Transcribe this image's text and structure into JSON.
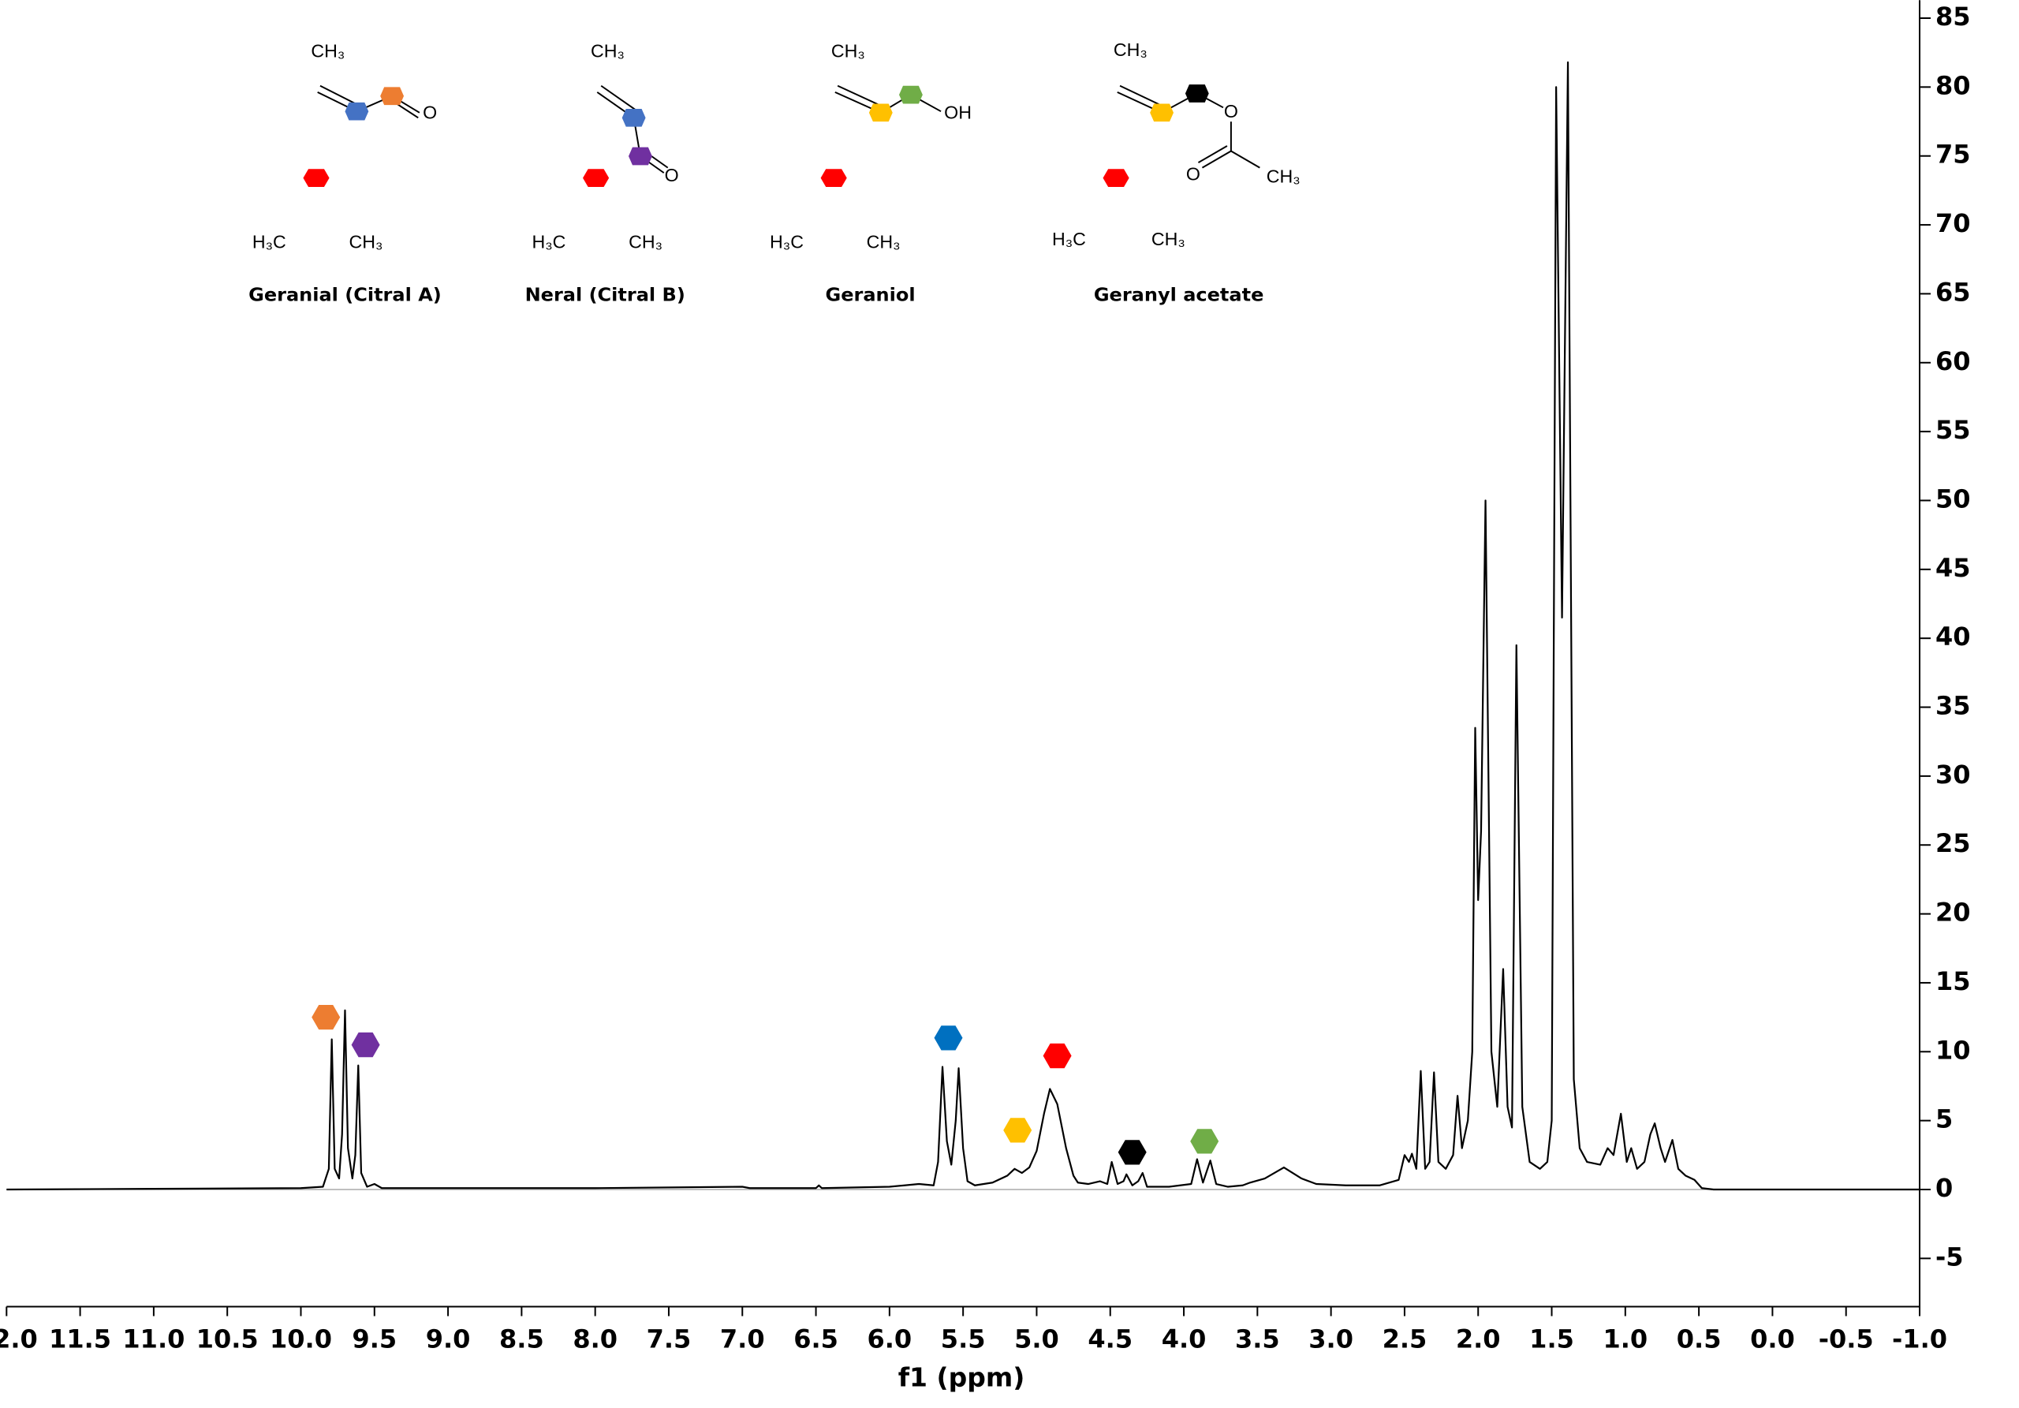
{
  "chart_data": {
    "type": "line",
    "xlabel": "f1 (ppm)",
    "xlim": [
      12.0,
      -1.0
    ],
    "ylim": [
      -8.5,
      86.3
    ],
    "xticks": [
      {
        "value": 12,
        "label": "12.0"
      },
      11.5,
      {
        "value": 11,
        "label": "11.0"
      },
      10.5,
      {
        "value": 10,
        "label": "10.0"
      },
      9.5,
      {
        "value": 9,
        "label": "9.0"
      },
      8.5,
      {
        "value": 8,
        "label": "8.0"
      },
      7.5,
      {
        "value": 7,
        "label": "7.0"
      },
      6.5,
      {
        "value": 6,
        "label": "6.0"
      },
      5.5,
      {
        "value": 5,
        "label": "5.0"
      },
      4.5,
      {
        "value": 4,
        "label": "4.0"
      },
      3.5,
      {
        "value": 3,
        "label": "3.0"
      },
      2.5,
      {
        "value": 2,
        "label": "2.0"
      },
      1.5,
      {
        "value": 1,
        "label": "1.0"
      },
      0.5,
      {
        "value": 0,
        "label": "0.0"
      },
      -0.5,
      {
        "value": -1,
        "label": "-1.0"
      }
    ],
    "yticks": [
      85,
      80,
      75,
      70,
      65,
      60,
      55,
      50,
      45,
      40,
      35,
      30,
      25,
      20,
      15,
      10,
      5,
      0,
      -5
    ],
    "color": "#000000",
    "x": [
      12.0,
      11.0,
      10.0,
      9.85,
      9.81,
      9.79,
      9.77,
      9.74,
      9.72,
      9.7,
      9.68,
      9.65,
      9.63,
      9.61,
      9.59,
      9.55,
      9.5,
      9.45,
      8.0,
      7.0,
      6.95,
      6.5,
      6.48,
      6.46,
      6.0,
      5.8,
      5.7,
      5.67,
      5.64,
      5.61,
      5.58,
      5.55,
      5.53,
      5.5,
      5.47,
      5.42,
      5.3,
      5.2,
      5.15,
      5.1,
      5.05,
      5.0,
      4.95,
      4.91,
      4.86,
      4.8,
      4.75,
      4.72,
      4.65,
      4.57,
      4.52,
      4.49,
      4.45,
      4.41,
      4.39,
      4.35,
      4.31,
      4.28,
      4.25,
      4.1,
      3.95,
      3.91,
      3.87,
      3.82,
      3.78,
      3.7,
      3.6,
      3.55,
      3.45,
      3.32,
      3.2,
      3.1,
      2.9,
      2.67,
      2.54,
      2.5,
      2.47,
      2.45,
      2.42,
      2.39,
      2.36,
      2.33,
      2.3,
      2.27,
      2.22,
      2.17,
      2.14,
      2.11,
      2.07,
      2.04,
      2.02,
      2.0,
      1.98,
      1.95,
      1.91,
      1.87,
      1.83,
      1.8,
      1.77,
      1.74,
      1.7,
      1.65,
      1.58,
      1.53,
      1.5,
      1.47,
      1.43,
      1.39,
      1.35,
      1.31,
      1.26,
      1.17,
      1.12,
      1.08,
      1.03,
      0.99,
      0.96,
      0.92,
      0.87,
      0.83,
      0.8,
      0.76,
      0.73,
      0.68,
      0.64,
      0.59,
      0.53,
      0.48,
      0.4,
      -1.0
    ],
    "values": [
      0,
      0.05,
      0.1,
      0.2,
      1.5,
      10.9,
      1.5,
      0.8,
      4,
      13.0,
      3,
      0.8,
      2.5,
      9.0,
      1.2,
      0.2,
      0.4,
      0.1,
      0.1,
      0.2,
      0.1,
      0.1,
      0.3,
      0.1,
      0.2,
      0.4,
      0.3,
      2,
      8.9,
      3.5,
      1.8,
      5,
      8.8,
      3,
      0.6,
      0.3,
      0.5,
      1.0,
      1.5,
      1.2,
      1.6,
      2.8,
      5.5,
      7.3,
      6.2,
      3,
      1,
      0.5,
      0.4,
      0.6,
      0.4,
      2.0,
      0.4,
      0.6,
      1.1,
      0.3,
      0.6,
      1.2,
      0.2,
      0.2,
      0.4,
      2.2,
      0.5,
      2.1,
      0.4,
      0.2,
      0.3,
      0.5,
      0.8,
      1.6,
      0.8,
      0.4,
      0.3,
      0.3,
      0.7,
      2.5,
      2.0,
      2.6,
      1.5,
      8.6,
      1.5,
      2.0,
      8.5,
      2.0,
      1.5,
      2.5,
      6.8,
      3.0,
      5.0,
      10.0,
      33.5,
      21,
      26,
      50,
      10,
      6,
      16,
      6,
      4.5,
      39.5,
      6,
      2,
      1.5,
      2,
      5,
      80,
      41.5,
      81.8,
      8,
      3,
      2,
      1.8,
      3,
      2.5,
      5.5,
      2,
      3,
      1.5,
      2,
      4,
      4.8,
      3,
      2,
      3.6,
      1.5,
      1,
      0.7,
      0.1,
      0,
      0
    ],
    "peak_markers": [
      {
        "x": 9.83,
        "y": 12.5,
        "color": "#ed7d31"
      },
      {
        "x": 9.56,
        "y": 10.5,
        "color": "#7030a0"
      },
      {
        "x": 5.6,
        "y": 11.0,
        "color": "#0070c0"
      },
      {
        "x": 5.13,
        "y": 4.3,
        "color": "#ffc000"
      },
      {
        "x": 4.86,
        "y": 9.7,
        "color": "#ff0000"
      },
      {
        "x": 4.35,
        "y": 2.7,
        "color": "#000000"
      },
      {
        "x": 3.86,
        "y": 3.5,
        "color": "#70ad47"
      }
    ],
    "structures": [
      {
        "name": "Geranial (Citral A)",
        "labels": [
          "CH₃",
          "O",
          "H₃C",
          "CH₃"
        ]
      },
      {
        "name": "Neral (Citral B)",
        "labels": [
          "CH₃",
          "O",
          "H₃C",
          "CH₃"
        ]
      },
      {
        "name": "Geraniol",
        "labels": [
          "CH₃",
          "OH",
          "H₃C",
          "CH₃"
        ]
      },
      {
        "name": "Geranyl acetate",
        "labels": [
          "CH₃",
          "O",
          "O",
          "CH₃",
          "H₃C",
          "CH₃"
        ]
      }
    ]
  }
}
